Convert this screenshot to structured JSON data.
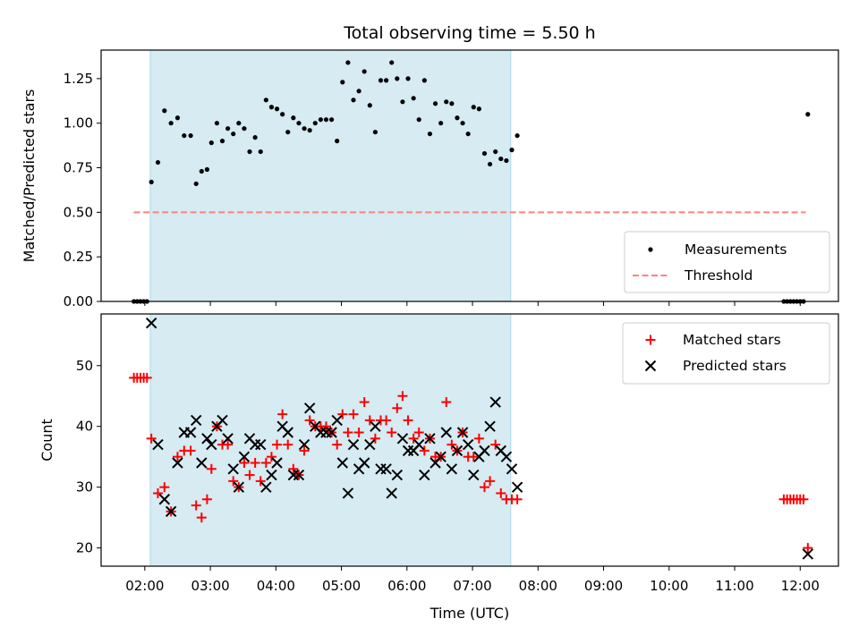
{
  "chart_data": [
    {
      "type": "scatter",
      "title": "Total observing time = 5.50 h",
      "xlabel": "",
      "ylabel": "Matched/Predicted stars",
      "ylim": [
        0,
        1.41
      ],
      "yticks": [
        0.0,
        0.25,
        0.5,
        0.75,
        1.0,
        1.25
      ],
      "ytick_labels": [
        "0.00",
        "0.25",
        "0.50",
        "0.75",
        "1.00",
        "1.25"
      ],
      "observing_window": [
        "02:05",
        "07:35"
      ],
      "threshold": {
        "name": "Threshold",
        "y": 0.5,
        "x_from": "01:50",
        "x_to": "12:05",
        "color": "#ff8080"
      },
      "series": [
        {
          "name": "Measurements",
          "color": "#000000",
          "points": [
            [
              "01:50",
              0
            ],
            [
              "01:53",
              0
            ],
            [
              "01:56",
              0
            ],
            [
              "01:59",
              0
            ],
            [
              "02:02",
              0
            ],
            [
              "02:06",
              0.67
            ],
            [
              "02:12",
              0.78
            ],
            [
              "02:18",
              1.07
            ],
            [
              "02:24",
              1.0
            ],
            [
              "02:30",
              1.03
            ],
            [
              "02:36",
              0.93
            ],
            [
              "02:42",
              0.93
            ],
            [
              "02:47",
              0.66
            ],
            [
              "02:52",
              0.73
            ],
            [
              "02:57",
              0.74
            ],
            [
              "03:01",
              0.89
            ],
            [
              "03:06",
              1.0
            ],
            [
              "03:11",
              0.9
            ],
            [
              "03:16",
              0.97
            ],
            [
              "03:21",
              0.94
            ],
            [
              "03:26",
              1.0
            ],
            [
              "03:31",
              0.97
            ],
            [
              "03:36",
              0.84
            ],
            [
              "03:41",
              0.92
            ],
            [
              "03:46",
              0.84
            ],
            [
              "03:51",
              1.13
            ],
            [
              "03:56",
              1.09
            ],
            [
              "04:01",
              1.08
            ],
            [
              "04:06",
              1.05
            ],
            [
              "04:11",
              0.95
            ],
            [
              "04:16",
              1.03
            ],
            [
              "04:21",
              1.0
            ],
            [
              "04:26",
              0.97
            ],
            [
              "04:31",
              0.96
            ],
            [
              "04:36",
              1.0
            ],
            [
              "04:41",
              1.02
            ],
            [
              "04:46",
              1.02
            ],
            [
              "04:51",
              1.02
            ],
            [
              "04:56",
              0.9
            ],
            [
              "05:01",
              1.23
            ],
            [
              "05:06",
              1.34
            ],
            [
              "05:11",
              1.13
            ],
            [
              "05:16",
              1.18
            ],
            [
              "05:21",
              1.29
            ],
            [
              "05:26",
              1.1
            ],
            [
              "05:31",
              0.95
            ],
            [
              "05:36",
              1.24
            ],
            [
              "05:41",
              1.24
            ],
            [
              "05:46",
              1.34
            ],
            [
              "05:51",
              1.25
            ],
            [
              "05:56",
              1.12
            ],
            [
              "06:01",
              1.25
            ],
            [
              "06:06",
              1.14
            ],
            [
              "06:11",
              1.02
            ],
            [
              "06:16",
              1.24
            ],
            [
              "06:21",
              0.94
            ],
            [
              "06:26",
              1.11
            ],
            [
              "06:31",
              1.0
            ],
            [
              "06:36",
              1.12
            ],
            [
              "06:41",
              1.11
            ],
            [
              "06:46",
              1.03
            ],
            [
              "06:51",
              1.0
            ],
            [
              "06:56",
              0.94
            ],
            [
              "07:01",
              1.09
            ],
            [
              "07:06",
              1.08
            ],
            [
              "07:11",
              0.83
            ],
            [
              "07:16",
              0.77
            ],
            [
              "07:21",
              0.84
            ],
            [
              "07:26",
              0.8
            ],
            [
              "07:31",
              0.79
            ],
            [
              "07:36",
              0.85
            ],
            [
              "07:41",
              0.93
            ],
            [
              "11:45",
              0
            ],
            [
              "11:48",
              0
            ],
            [
              "11:51",
              0
            ],
            [
              "11:54",
              0
            ],
            [
              "11:57",
              0
            ],
            [
              "12:00",
              0
            ],
            [
              "12:03",
              0
            ],
            [
              "12:07",
              1.05
            ]
          ]
        }
      ],
      "legend": {
        "placement": "lower-right",
        "entries": [
          "Measurements",
          "Threshold"
        ]
      },
      "grid": false
    },
    {
      "type": "scatter",
      "title": "",
      "xlabel": "Time (UTC)",
      "ylabel": "Count",
      "ylim": [
        17,
        58.5
      ],
      "yticks": [
        20,
        30,
        40,
        50
      ],
      "ytick_labels": [
        "20",
        "30",
        "40",
        "50"
      ],
      "xticks": [
        "02:00",
        "03:00",
        "04:00",
        "05:00",
        "06:00",
        "07:00",
        "08:00",
        "09:00",
        "10:00",
        "11:00",
        "12:00"
      ],
      "xlim": [
        "01:20",
        "12:35"
      ],
      "observing_window": [
        "02:05",
        "07:35"
      ],
      "series": [
        {
          "name": "Matched stars",
          "marker": "+",
          "color": "#ff0000",
          "points": [
            [
              "01:50",
              48
            ],
            [
              "01:53",
              48
            ],
            [
              "01:56",
              48
            ],
            [
              "01:59",
              48
            ],
            [
              "02:02",
              48
            ],
            [
              "02:06",
              38
            ],
            [
              "02:12",
              29
            ],
            [
              "02:18",
              30
            ],
            [
              "02:24",
              26
            ],
            [
              "02:30",
              35
            ],
            [
              "02:36",
              36
            ],
            [
              "02:42",
              36
            ],
            [
              "02:47",
              27
            ],
            [
              "02:52",
              25
            ],
            [
              "02:57",
              28
            ],
            [
              "03:01",
              33
            ],
            [
              "03:06",
              40
            ],
            [
              "03:11",
              37
            ],
            [
              "03:16",
              37
            ],
            [
              "03:21",
              31
            ],
            [
              "03:26",
              30
            ],
            [
              "03:31",
              34
            ],
            [
              "03:36",
              32
            ],
            [
              "03:41",
              34
            ],
            [
              "03:46",
              31
            ],
            [
              "03:51",
              34
            ],
            [
              "03:56",
              35
            ],
            [
              "04:01",
              37
            ],
            [
              "04:06",
              42
            ],
            [
              "04:11",
              37
            ],
            [
              "04:16",
              33
            ],
            [
              "04:21",
              32
            ],
            [
              "04:26",
              36
            ],
            [
              "04:31",
              41
            ],
            [
              "04:36",
              40
            ],
            [
              "04:41",
              40
            ],
            [
              "04:46",
              40
            ],
            [
              "04:51",
              39
            ],
            [
              "04:56",
              37
            ],
            [
              "05:01",
              42
            ],
            [
              "05:06",
              39
            ],
            [
              "05:11",
              42
            ],
            [
              "05:16",
              39
            ],
            [
              "05:21",
              44
            ],
            [
              "05:26",
              41
            ],
            [
              "05:31",
              38
            ],
            [
              "05:36",
              41
            ],
            [
              "05:41",
              41
            ],
            [
              "05:46",
              39
            ],
            [
              "05:51",
              43
            ],
            [
              "05:56",
              45
            ],
            [
              "06:01",
              41
            ],
            [
              "06:06",
              38
            ],
            [
              "06:11",
              39
            ],
            [
              "06:16",
              36
            ],
            [
              "06:21",
              38
            ],
            [
              "06:26",
              35
            ],
            [
              "06:31",
              35
            ],
            [
              "06:36",
              44
            ],
            [
              "06:41",
              37
            ],
            [
              "06:46",
              36
            ],
            [
              "06:51",
              39
            ],
            [
              "06:56",
              35
            ],
            [
              "07:01",
              35
            ],
            [
              "07:06",
              38
            ],
            [
              "07:11",
              30
            ],
            [
              "07:16",
              31
            ],
            [
              "07:21",
              37
            ],
            [
              "07:26",
              29
            ],
            [
              "07:31",
              28
            ],
            [
              "07:36",
              28
            ],
            [
              "07:41",
              28
            ],
            [
              "11:45",
              28
            ],
            [
              "11:48",
              28
            ],
            [
              "11:51",
              28
            ],
            [
              "11:54",
              28
            ],
            [
              "11:57",
              28
            ],
            [
              "12:00",
              28
            ],
            [
              "12:03",
              28
            ],
            [
              "12:07",
              20
            ]
          ]
        },
        {
          "name": "Predicted stars",
          "marker": "x",
          "color": "#000000",
          "points": [
            [
              "02:06",
              57
            ],
            [
              "02:12",
              37
            ],
            [
              "02:18",
              28
            ],
            [
              "02:24",
              26
            ],
            [
              "02:30",
              34
            ],
            [
              "02:36",
              39
            ],
            [
              "02:42",
              39
            ],
            [
              "02:47",
              41
            ],
            [
              "02:52",
              34
            ],
            [
              "02:57",
              38
            ],
            [
              "03:01",
              37
            ],
            [
              "03:06",
              40
            ],
            [
              "03:11",
              41
            ],
            [
              "03:16",
              38
            ],
            [
              "03:21",
              33
            ],
            [
              "03:26",
              30
            ],
            [
              "03:31",
              35
            ],
            [
              "03:36",
              38
            ],
            [
              "03:41",
              37
            ],
            [
              "03:46",
              37
            ],
            [
              "03:51",
              30
            ],
            [
              "03:56",
              32
            ],
            [
              "04:01",
              34
            ],
            [
              "04:06",
              40
            ],
            [
              "04:11",
              39
            ],
            [
              "04:16",
              32
            ],
            [
              "04:21",
              32
            ],
            [
              "04:26",
              37
            ],
            [
              "04:31",
              43
            ],
            [
              "04:36",
              40
            ],
            [
              "04:41",
              39
            ],
            [
              "04:46",
              39
            ],
            [
              "04:51",
              39
            ],
            [
              "04:56",
              41
            ],
            [
              "05:01",
              34
            ],
            [
              "05:06",
              29
            ],
            [
              "05:11",
              37
            ],
            [
              "05:16",
              33
            ],
            [
              "05:21",
              34
            ],
            [
              "05:26",
              37
            ],
            [
              "05:31",
              40
            ],
            [
              "05:36",
              33
            ],
            [
              "05:41",
              33
            ],
            [
              "05:46",
              29
            ],
            [
              "05:51",
              32
            ],
            [
              "05:56",
              38
            ],
            [
              "06:01",
              36
            ],
            [
              "06:06",
              36
            ],
            [
              "06:11",
              37
            ],
            [
              "06:16",
              32
            ],
            [
              "06:21",
              38
            ],
            [
              "06:26",
              34
            ],
            [
              "06:31",
              35
            ],
            [
              "06:36",
              39
            ],
            [
              "06:41",
              33
            ],
            [
              "06:46",
              36
            ],
            [
              "06:51",
              39
            ],
            [
              "06:56",
              37
            ],
            [
              "07:01",
              32
            ],
            [
              "07:06",
              35
            ],
            [
              "07:11",
              36
            ],
            [
              "07:16",
              40
            ],
            [
              "07:21",
              44
            ],
            [
              "07:26",
              36
            ],
            [
              "07:31",
              35
            ],
            [
              "07:36",
              33
            ],
            [
              "07:41",
              30
            ],
            [
              "12:07",
              19
            ]
          ]
        }
      ],
      "legend": {
        "placement": "upper-right",
        "entries": [
          "Matched stars",
          "Predicted stars"
        ]
      },
      "grid": false
    }
  ],
  "colors": {
    "observing_window_fill": "#add8e6",
    "threshold_line": "#ff8080",
    "matched_marker": "#ff0000",
    "predicted_marker": "#000000",
    "measurement_marker": "#000000"
  }
}
